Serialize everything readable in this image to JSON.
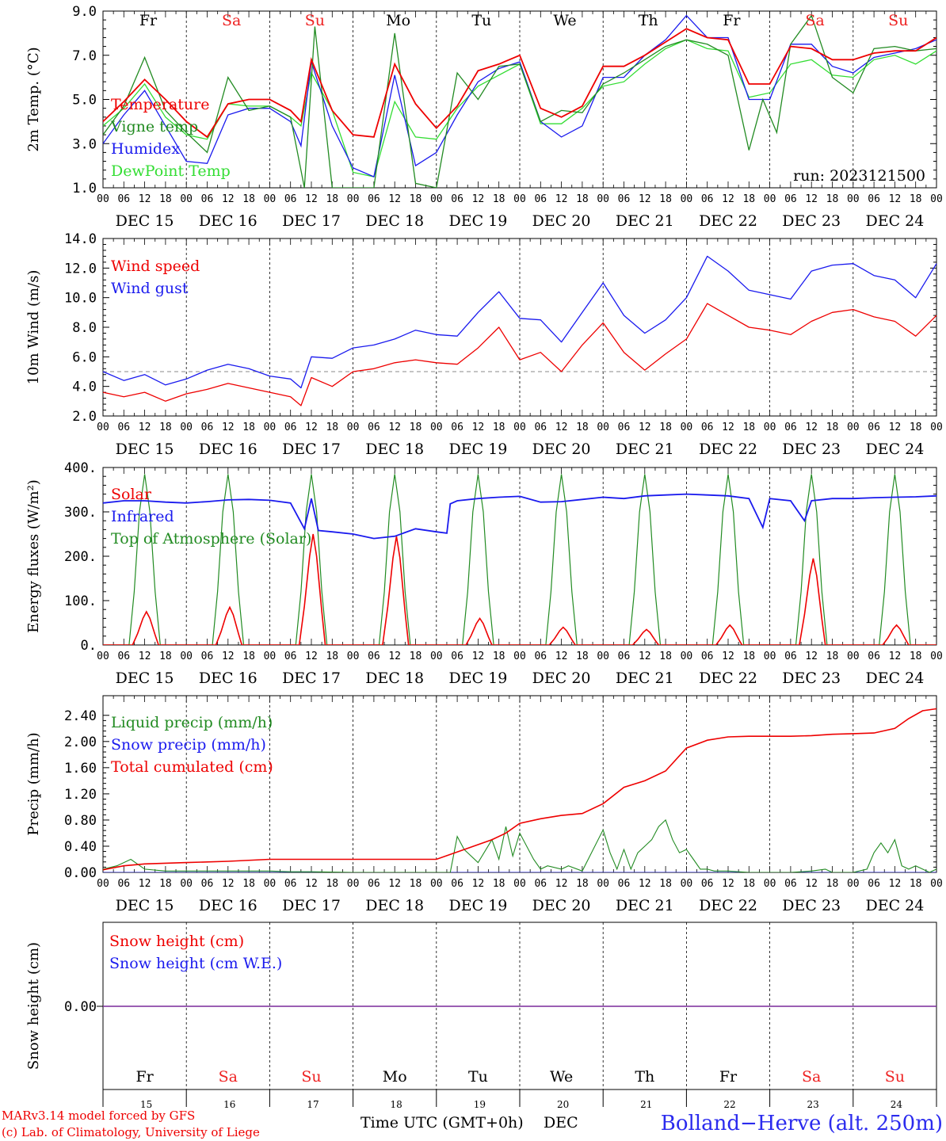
{
  "run_label": "run: 2023121500",
  "footer": {
    "model_line": "MARv3.14 model forced by GFS",
    "credit_line": "(c) Lab. of Climatology, University of Liege",
    "xlabel": "Time UTC (GMT+0h)",
    "month": "DEC",
    "station": "Bolland−Herve (alt. 250m)"
  },
  "days": [
    {
      "abbr": "Fr",
      "weekend": false,
      "date_label": "DEC 15",
      "num": "15"
    },
    {
      "abbr": "Sa",
      "weekend": true,
      "date_label": "DEC 16",
      "num": "16"
    },
    {
      "abbr": "Su",
      "weekend": true,
      "date_label": "DEC 17",
      "num": "17"
    },
    {
      "abbr": "Mo",
      "weekend": false,
      "date_label": "DEC 18",
      "num": "18"
    },
    {
      "abbr": "Tu",
      "weekend": false,
      "date_label": "DEC 19",
      "num": "19"
    },
    {
      "abbr": "We",
      "weekend": false,
      "date_label": "DEC 20",
      "num": "20"
    },
    {
      "abbr": "Th",
      "weekend": false,
      "date_label": "DEC 21",
      "num": "21"
    },
    {
      "abbr": "Fr",
      "weekend": false,
      "date_label": "DEC 22",
      "num": "22"
    },
    {
      "abbr": "Sa",
      "weekend": true,
      "date_label": "DEC 23",
      "num": "23"
    },
    {
      "abbr": "Su",
      "weekend": true,
      "date_label": "DEC 24",
      "num": "24"
    }
  ],
  "hour_labels": [
    "00",
    "06",
    "12",
    "18"
  ],
  "colors": {
    "red": "#ee0000",
    "blue": "#1a1aee",
    "darkgreen": "#228b22",
    "lightgreen": "#33dd33",
    "purple": "#7a2a9a",
    "weekend": "#ee2222"
  },
  "chart_data": [
    {
      "type": "line",
      "ylabel": "2m Temp. (°C)",
      "ylim": [
        1.0,
        9.0
      ],
      "yticks": [
        "1.0",
        "3.0",
        "5.0",
        "7.0",
        "9.0"
      ],
      "x_unit": "hours since DEC 15 00 UTC",
      "series": [
        {
          "name": "Temperature",
          "color": "red",
          "x": [
            0,
            6,
            12,
            18,
            24,
            30,
            36,
            42,
            48,
            54,
            57,
            60,
            66,
            72,
            78,
            84,
            90,
            96,
            102,
            108,
            114,
            120,
            126,
            132,
            138,
            144,
            150,
            156,
            162,
            168,
            174,
            180,
            186,
            192,
            198,
            204,
            210,
            216,
            222,
            228,
            234,
            240
          ],
          "y": [
            4.0,
            4.9,
            5.9,
            5.0,
            4.0,
            3.3,
            4.8,
            5.0,
            5.0,
            4.5,
            4.0,
            6.8,
            4.5,
            3.4,
            3.3,
            6.6,
            4.8,
            3.7,
            4.7,
            6.3,
            6.6,
            7.0,
            4.6,
            4.2,
            4.7,
            6.5,
            6.5,
            7.0,
            7.6,
            8.2,
            7.8,
            7.7,
            5.7,
            5.7,
            7.4,
            7.3,
            6.8,
            6.8,
            7.1,
            7.2,
            7.2,
            7.8
          ]
        },
        {
          "name": "Vigne temp",
          "color": "darkgreen",
          "x": [
            0,
            6,
            12,
            18,
            24,
            30,
            36,
            42,
            48,
            54,
            58,
            61,
            66,
            72,
            78,
            84,
            90,
            96,
            102,
            108,
            114,
            120,
            126,
            132,
            138,
            144,
            150,
            156,
            162,
            168,
            174,
            180,
            186,
            190,
            194,
            198,
            204,
            210,
            216,
            222,
            228,
            234,
            240
          ],
          "y": [
            3.4,
            4.7,
            6.9,
            4.5,
            3.5,
            2.6,
            6.0,
            4.5,
            4.7,
            4.2,
            1.0,
            8.3,
            1.0,
            1.0,
            1.0,
            8.0,
            1.2,
            1.0,
            6.2,
            5.0,
            6.5,
            6.6,
            4.0,
            4.5,
            4.4,
            5.7,
            6.2,
            6.8,
            7.4,
            7.7,
            7.5,
            7.0,
            2.7,
            5.0,
            3.5,
            7.5,
            8.8,
            6.0,
            5.3,
            7.3,
            7.4,
            7.2,
            7.3
          ]
        },
        {
          "name": "Humidex",
          "color": "blue",
          "x": [
            0,
            6,
            12,
            18,
            24,
            30,
            36,
            42,
            48,
            54,
            57,
            60,
            66,
            72,
            78,
            84,
            90,
            96,
            102,
            108,
            114,
            120,
            126,
            132,
            138,
            144,
            150,
            156,
            162,
            168,
            174,
            180,
            186,
            192,
            198,
            204,
            210,
            216,
            222,
            228,
            234,
            240
          ],
          "y": [
            3.0,
            4.3,
            5.4,
            3.8,
            2.2,
            2.1,
            4.3,
            4.6,
            4.6,
            4.0,
            2.9,
            6.7,
            3.8,
            1.9,
            1.5,
            6.1,
            2.0,
            2.6,
            4.3,
            5.8,
            6.4,
            6.7,
            4.0,
            3.3,
            3.8,
            6.0,
            6.0,
            7.0,
            7.7,
            8.8,
            7.8,
            7.8,
            5.0,
            5.0,
            7.5,
            7.5,
            6.5,
            6.2,
            6.9,
            7.1,
            7.3,
            7.7
          ]
        },
        {
          "name": "DewPoint Temp",
          "color": "lightgreen",
          "x": [
            0,
            6,
            12,
            18,
            24,
            30,
            36,
            42,
            48,
            54,
            57,
            60,
            66,
            72,
            78,
            84,
            90,
            96,
            102,
            108,
            114,
            120,
            126,
            132,
            138,
            144,
            150,
            156,
            162,
            168,
            174,
            180,
            186,
            192,
            198,
            204,
            210,
            216,
            222,
            228,
            234,
            240
          ],
          "y": [
            3.8,
            4.6,
            5.7,
            4.2,
            3.4,
            3.2,
            4.8,
            4.7,
            4.7,
            4.2,
            3.8,
            6.2,
            4.5,
            1.7,
            1.5,
            4.9,
            3.3,
            3.2,
            4.6,
            5.6,
            6.1,
            6.6,
            3.9,
            3.9,
            4.6,
            5.6,
            5.8,
            6.6,
            7.3,
            7.7,
            7.3,
            7.2,
            5.1,
            5.3,
            6.6,
            6.8,
            6.1,
            6.0,
            6.8,
            7.0,
            6.6,
            7.2
          ]
        }
      ]
    },
    {
      "type": "line",
      "ylabel": "10m Wind (m/s)",
      "ylim": [
        2.0,
        14.0
      ],
      "yticks": [
        "2.0",
        "4.0",
        "6.0",
        "8.0",
        "10.0",
        "12.0",
        "14.0"
      ],
      "reference_line": 5.0,
      "series": [
        {
          "name": "Wind speed",
          "color": "red",
          "x": [
            0,
            6,
            12,
            18,
            24,
            30,
            36,
            42,
            48,
            54,
            57,
            60,
            66,
            72,
            78,
            84,
            90,
            96,
            102,
            108,
            114,
            120,
            126,
            132,
            138,
            144,
            150,
            156,
            162,
            168,
            174,
            180,
            186,
            192,
            198,
            204,
            210,
            216,
            222,
            228,
            234,
            240
          ],
          "y": [
            3.6,
            3.3,
            3.6,
            3.0,
            3.5,
            3.8,
            4.2,
            3.9,
            3.6,
            3.3,
            2.7,
            4.6,
            4.0,
            5.0,
            5.2,
            5.6,
            5.8,
            5.6,
            5.5,
            6.6,
            8.0,
            5.8,
            6.3,
            5.0,
            6.8,
            8.3,
            6.3,
            5.1,
            6.2,
            7.2,
            9.6,
            8.8,
            8.0,
            7.8,
            7.5,
            8.4,
            9.0,
            9.2,
            8.7,
            8.4,
            7.4,
            8.8
          ]
        },
        {
          "name": "Wind gust",
          "color": "blue",
          "x": [
            0,
            6,
            12,
            18,
            24,
            30,
            36,
            42,
            48,
            54,
            57,
            60,
            66,
            72,
            78,
            84,
            90,
            96,
            102,
            108,
            114,
            120,
            126,
            132,
            138,
            144,
            150,
            156,
            162,
            168,
            174,
            180,
            186,
            192,
            198,
            204,
            210,
            216,
            222,
            228,
            234,
            240
          ],
          "y": [
            5.0,
            4.4,
            4.8,
            4.1,
            4.5,
            5.1,
            5.5,
            5.2,
            4.7,
            4.5,
            3.9,
            6.0,
            5.9,
            6.6,
            6.8,
            7.2,
            7.8,
            7.5,
            7.4,
            9.0,
            10.4,
            8.6,
            8.5,
            7.0,
            9.0,
            11.0,
            8.8,
            7.6,
            8.5,
            10.0,
            12.8,
            11.8,
            10.5,
            10.2,
            9.9,
            11.8,
            12.2,
            12.3,
            11.5,
            11.2,
            10.0,
            12.3
          ]
        }
      ]
    },
    {
      "type": "line",
      "ylabel": "Energy fluxes (W/m²)",
      "ylim": [
        0,
        400
      ],
      "yticks": [
        "0.",
        "100.",
        "200.",
        "300.",
        "400."
      ],
      "series": [
        {
          "name": "Solar",
          "color": "red",
          "daily_peaks": [
            75,
            85,
            250,
            245,
            60,
            40,
            35,
            45,
            195,
            45
          ]
        },
        {
          "name": "Infrared",
          "color": "blue",
          "x": [
            0,
            6,
            12,
            18,
            24,
            30,
            36,
            42,
            48,
            54,
            58,
            60,
            62,
            66,
            72,
            78,
            84,
            90,
            96,
            99,
            100,
            102,
            108,
            114,
            120,
            126,
            132,
            138,
            144,
            150,
            156,
            162,
            168,
            174,
            180,
            186,
            190,
            192,
            198,
            202,
            204,
            210,
            216,
            222,
            228,
            234,
            240
          ],
          "y": [
            320,
            325,
            325,
            322,
            320,
            323,
            327,
            328,
            326,
            320,
            262,
            330,
            258,
            255,
            250,
            240,
            245,
            262,
            255,
            252,
            318,
            325,
            330,
            333,
            335,
            322,
            323,
            328,
            333,
            330,
            336,
            338,
            340,
            338,
            336,
            330,
            265,
            330,
            325,
            280,
            325,
            330,
            330,
            332,
            333,
            334,
            336
          ]
        },
        {
          "name": "Top of Atmosphere (Solar)",
          "color": "darkgreen",
          "daily_peak": 385
        }
      ]
    },
    {
      "type": "line",
      "ylabel": "Precip (mm/h)",
      "ylim": [
        0.0,
        2.7
      ],
      "yticks": [
        "0.00",
        "0.40",
        "0.80",
        "1.20",
        "1.60",
        "2.00",
        "2.40"
      ],
      "series": [
        {
          "name": "Liquid precip (mm/h)",
          "color": "darkgreen",
          "x": [
            0,
            4,
            8,
            12,
            18,
            24,
            30,
            36,
            42,
            48,
            54,
            60,
            72,
            84,
            96,
            100,
            102,
            104,
            108,
            112,
            114,
            116,
            118,
            120,
            124,
            126,
            128,
            132,
            134,
            138,
            144,
            146,
            148,
            150,
            152,
            154,
            156,
            158,
            160,
            162,
            164,
            166,
            168,
            170,
            172,
            174,
            176,
            180,
            186,
            192,
            198,
            204,
            208,
            210,
            212,
            216,
            220,
            222,
            224,
            226,
            228,
            230,
            232,
            234,
            236,
            238,
            240
          ],
          "y": [
            0.05,
            0.1,
            0.2,
            0.05,
            0.02,
            0.02,
            0.02,
            0.02,
            0.02,
            0.02,
            0.01,
            0.01,
            0.0,
            0.0,
            0.0,
            0.0,
            0.55,
            0.35,
            0.15,
            0.5,
            0.2,
            0.7,
            0.25,
            0.6,
            0.2,
            0.05,
            0.1,
            0.05,
            0.1,
            0.02,
            0.65,
            0.3,
            0.05,
            0.35,
            0.05,
            0.3,
            0.4,
            0.5,
            0.7,
            0.8,
            0.5,
            0.3,
            0.35,
            0.2,
            0.05,
            0.05,
            0.02,
            0.02,
            0.0,
            0.0,
            0.0,
            0.02,
            0.05,
            0.0,
            0.0,
            0.0,
            0.05,
            0.3,
            0.45,
            0.3,
            0.5,
            0.1,
            0.05,
            0.1,
            0.05,
            0.0,
            0.05
          ]
        },
        {
          "name": "Snow precip (mm/h)",
          "color": "blue",
          "x": [
            0,
            240
          ],
          "y": [
            0.0,
            0.0
          ]
        },
        {
          "name": "Total cumulated (cm)",
          "color": "red",
          "x": [
            0,
            6,
            12,
            24,
            36,
            48,
            60,
            72,
            84,
            96,
            104,
            112,
            116,
            120,
            126,
            132,
            138,
            144,
            150,
            156,
            162,
            168,
            174,
            180,
            186,
            192,
            198,
            204,
            210,
            216,
            222,
            228,
            232,
            236,
            240
          ],
          "y": [
            0.04,
            0.1,
            0.13,
            0.15,
            0.17,
            0.2,
            0.2,
            0.2,
            0.2,
            0.2,
            0.35,
            0.5,
            0.6,
            0.75,
            0.82,
            0.87,
            0.9,
            1.05,
            1.3,
            1.4,
            1.55,
            1.9,
            2.02,
            2.07,
            2.08,
            2.08,
            2.08,
            2.09,
            2.11,
            2.12,
            2.13,
            2.2,
            2.35,
            2.47,
            2.5
          ]
        }
      ]
    },
    {
      "type": "line",
      "ylabel": "Snow height (cm)",
      "yticks": [
        "0.00"
      ],
      "series": [
        {
          "name": "Snow height (cm)",
          "color": "red",
          "x": [
            0,
            240
          ],
          "y": [
            0.0,
            0.0
          ]
        },
        {
          "name": "Snow height (cm W.E.)",
          "color": "blue",
          "x": [
            0,
            240
          ],
          "y": [
            0.0,
            0.0
          ]
        }
      ]
    }
  ]
}
